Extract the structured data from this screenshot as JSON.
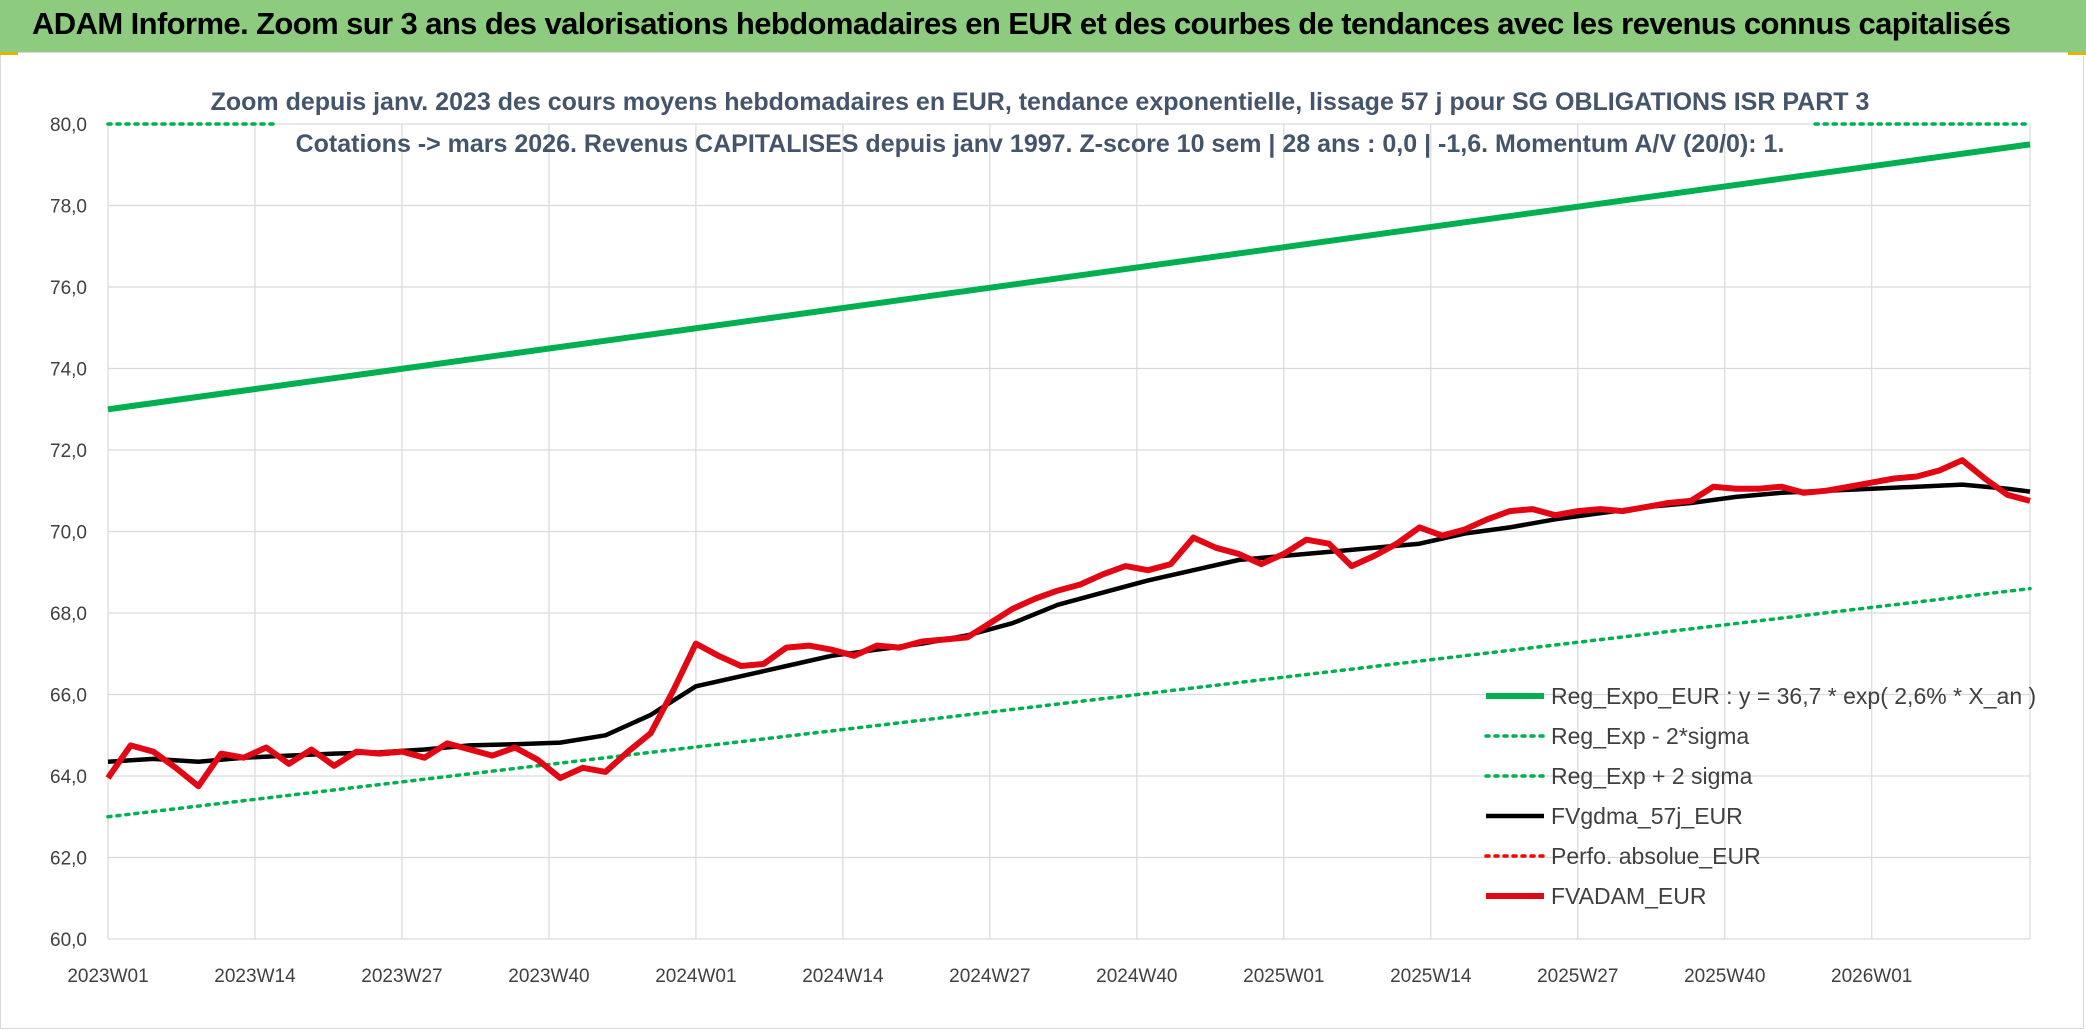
{
  "header": {
    "title": "ADAM Informe. Zoom sur 3 ans des valorisations hebdomadaires en EUR et des courbes de tendances avec les revenus connus capitalisés"
  },
  "chart_data": {
    "type": "line",
    "title": "",
    "subtitle_lines": [
      "Zoom depuis janv. 2023 des cours moyens hebdomadaires en EUR, tendance exponentielle, lissage 57 j pour SG OBLIGATIONS ISR PART 3",
      "Cotations -> mars 2026. Revenus CAPITALISES depuis janv 1997. Z-score 10 sem | 28 ans : 0,0 | -1,6. Momentum A/V (20/0): 1."
    ],
    "xlabel": "",
    "ylabel": "",
    "ylim": [
      60,
      80
    ],
    "y_ticks": [
      "60,0",
      "62,0",
      "64,0",
      "66,0",
      "68,0",
      "70,0",
      "72,0",
      "74,0",
      "76,0",
      "78,0",
      "80,0"
    ],
    "x_ticks": [
      "2023W01",
      "2023W14",
      "2023W27",
      "2023W40",
      "2024W01",
      "2024W14",
      "2024W27",
      "2024W40",
      "2025W01",
      "2025W14",
      "2025W27",
      "2025W40",
      "2026W01"
    ],
    "x_tick_weeks": [
      0,
      13,
      26,
      39,
      52,
      65,
      78,
      91,
      104,
      117,
      130,
      143,
      156
    ],
    "x_max_week": 170,
    "grid": true,
    "legend_position": "bottom-right",
    "series": [
      {
        "name": "Reg_Expo_EUR : y = 36,7 * exp( 2,6% *  X_an )",
        "color": "#00b050",
        "style": "solid-thick",
        "x": [
          0,
          170
        ],
        "values": [
          73.0,
          79.5
        ]
      },
      {
        "name": "Reg_Exp - 2*sigma",
        "color": "#00b050",
        "style": "dotted",
        "x": [
          0,
          170
        ],
        "values": [
          63.0,
          68.6
        ]
      },
      {
        "name": "Reg_Exp + 2 sigma",
        "color": "#00b050",
        "style": "dotted",
        "x": [
          0,
          15,
          151,
          170
        ],
        "values": [
          80.0,
          80.0,
          80.0,
          80.0
        ],
        "segments": [
          [
            0,
            15
          ],
          [
            151,
            170
          ]
        ]
      },
      {
        "name": "FVgdma_57j_EUR",
        "color": "#000000",
        "style": "solid",
        "x": [
          0,
          4,
          8,
          12,
          16,
          20,
          24,
          28,
          32,
          36,
          40,
          44,
          48,
          52,
          56,
          60,
          64,
          68,
          72,
          76,
          80,
          84,
          88,
          92,
          96,
          100,
          104,
          108,
          112,
          116,
          120,
          124,
          128,
          132,
          136,
          140,
          144,
          148,
          152,
          156,
          160,
          164,
          168,
          170
        ],
        "values": [
          64.35,
          64.42,
          64.35,
          64.45,
          64.5,
          64.55,
          64.58,
          64.65,
          64.75,
          64.78,
          64.82,
          65.0,
          65.5,
          66.2,
          66.45,
          66.7,
          66.95,
          67.1,
          67.25,
          67.45,
          67.75,
          68.2,
          68.5,
          68.8,
          69.05,
          69.3,
          69.4,
          69.5,
          69.6,
          69.7,
          69.95,
          70.1,
          70.3,
          70.45,
          70.6,
          70.7,
          70.85,
          70.95,
          71.0,
          71.05,
          71.1,
          71.15,
          71.05,
          70.98
        ]
      },
      {
        "name": "Perfo. absolue_EUR",
        "color": "#ff0000",
        "style": "dotted",
        "x": [],
        "values": []
      },
      {
        "name": "FVADAM_EUR",
        "color": "#e30613",
        "style": "solid-thick",
        "x": [
          0,
          2,
          4,
          6,
          8,
          10,
          12,
          14,
          16,
          18,
          20,
          22,
          24,
          26,
          28,
          30,
          32,
          34,
          36,
          38,
          40,
          42,
          44,
          46,
          48,
          50,
          52,
          54,
          56,
          58,
          60,
          62,
          64,
          66,
          68,
          70,
          72,
          74,
          76,
          78,
          80,
          82,
          84,
          86,
          88,
          90,
          92,
          94,
          96,
          98,
          100,
          102,
          104,
          106,
          108,
          110,
          112,
          114,
          116,
          118,
          120,
          122,
          124,
          126,
          128,
          130,
          132,
          134,
          136,
          138,
          140,
          142,
          144,
          146,
          148,
          150,
          152,
          154,
          156,
          158,
          160,
          162,
          164,
          166,
          168,
          170
        ],
        "values": [
          63.95,
          64.75,
          64.6,
          64.2,
          63.75,
          64.55,
          64.45,
          64.7,
          64.3,
          64.65,
          64.25,
          64.6,
          64.55,
          64.6,
          64.45,
          64.8,
          64.65,
          64.5,
          64.7,
          64.4,
          63.95,
          64.2,
          64.1,
          64.6,
          65.05,
          66.1,
          67.25,
          66.95,
          66.7,
          66.75,
          67.15,
          67.2,
          67.1,
          66.95,
          67.2,
          67.15,
          67.3,
          67.35,
          67.4,
          67.75,
          68.1,
          68.35,
          68.55,
          68.7,
          68.95,
          69.15,
          69.05,
          69.2,
          69.85,
          69.6,
          69.45,
          69.2,
          69.45,
          69.8,
          69.7,
          69.15,
          69.4,
          69.7,
          70.1,
          69.9,
          70.05,
          70.3,
          70.5,
          70.55,
          70.4,
          70.5,
          70.55,
          70.5,
          70.6,
          70.7,
          70.75,
          71.1,
          71.05,
          71.05,
          71.1,
          70.95,
          71.0,
          71.1,
          71.2,
          71.3,
          71.35,
          71.5,
          71.75,
          71.3,
          70.9,
          70.75
        ]
      }
    ]
  },
  "colors": {
    "header_bg": "#8dcb7e",
    "grid": "#d9d9d9",
    "axis_text": "#404040",
    "subtitle": "#44546a"
  }
}
